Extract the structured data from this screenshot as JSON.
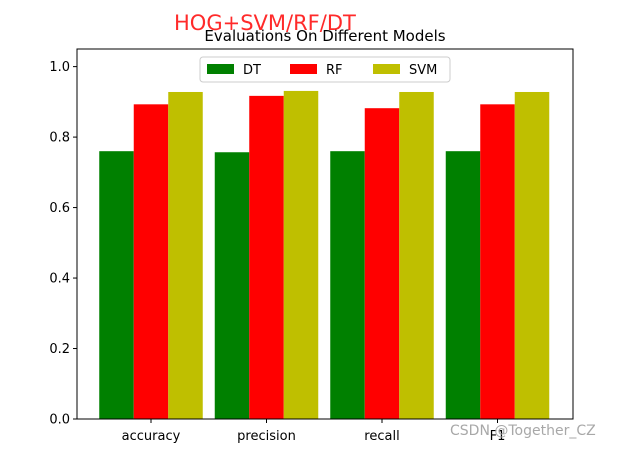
{
  "overlay_title": "HOG+SVM/RF/DT",
  "watermark": "CSDN @Together_CZ",
  "colors": {
    "DT": "#008000",
    "RF": "#ff0000",
    "SVM": "#bfbf00"
  },
  "chart_data": {
    "type": "bar",
    "title": "Evaluations On Different Models",
    "xlabel": "",
    "ylabel": "",
    "categories": [
      "accuracy",
      "precision",
      "recall",
      "F1"
    ],
    "series": [
      {
        "name": "DT",
        "values": [
          0.76,
          0.757,
          0.76,
          0.76
        ]
      },
      {
        "name": "RF",
        "values": [
          0.893,
          0.917,
          0.882,
          0.893
        ]
      },
      {
        "name": "SVM",
        "values": [
          0.928,
          0.931,
          0.928,
          0.928
        ]
      }
    ],
    "ylim": [
      0,
      1.05
    ],
    "yticks": [
      "0.0",
      "0.2",
      "0.4",
      "0.6",
      "0.8",
      "1.0"
    ],
    "legend": "top-center",
    "grid": false
  }
}
